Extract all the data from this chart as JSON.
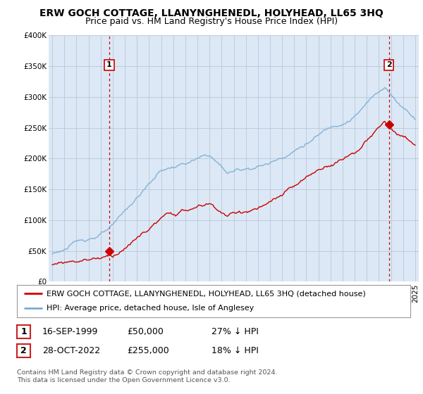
{
  "title": "ERW GOCH COTTAGE, LLANYNGHENEDL, HOLYHEAD, LL65 3HQ",
  "subtitle": "Price paid vs. HM Land Registry's House Price Index (HPI)",
  "background_color": "#ffffff",
  "plot_bg_color": "#dce8f5",
  "grid_color": "#b8c8d8",
  "red_line_color": "#cc0000",
  "blue_line_color": "#7aacd6",
  "sale1_date_x": 1999.71,
  "sale1_price": 50000,
  "sale1_label": "1",
  "sale2_date_x": 2022.83,
  "sale2_price": 255000,
  "sale2_label": "2",
  "vline_color": "#cc0000",
  "ylim_min": 0,
  "ylim_max": 400000,
  "xlim_min": 1994.7,
  "xlim_max": 2025.3,
  "legend_red": "ERW GOCH COTTAGE, LLANYNGHENEDL, HOLYHEAD, LL65 3HQ (detached house)",
  "legend_blue": "HPI: Average price, detached house, Isle of Anglesey",
  "table_row1": [
    "1",
    "16-SEP-1999",
    "£50,000",
    "27% ↓ HPI"
  ],
  "table_row2": [
    "2",
    "28-OCT-2022",
    "£255,000",
    "18% ↓ HPI"
  ],
  "footnote": "Contains HM Land Registry data © Crown copyright and database right 2024.\nThis data is licensed under the Open Government Licence v3.0.",
  "title_fontsize": 10,
  "subtitle_fontsize": 9,
  "tick_fontsize": 7.5,
  "legend_fontsize": 8,
  "table_fontsize": 9
}
